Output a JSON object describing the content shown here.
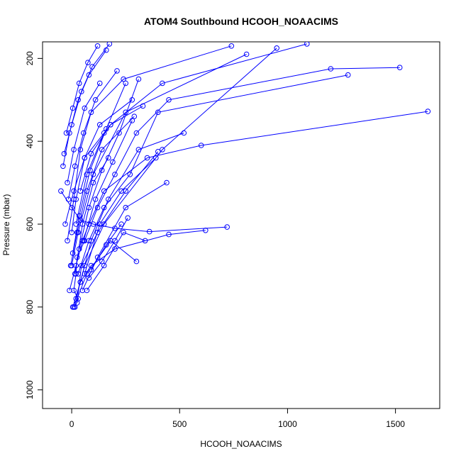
{
  "chart_data": {
    "type": "line",
    "title": "ATOM4 Southbound HCOOH_NOAACIMS",
    "xlabel": "HCOOH_NOAACIMS",
    "ylabel": "Pressure (mbar)",
    "xlim": [
      -135,
      1705
    ],
    "ylim": [
      1045,
      160
    ],
    "y_reversed": true,
    "grid": false,
    "x_ticks": [
      0,
      500,
      1000,
      1500
    ],
    "y_ticks": [
      200,
      400,
      600,
      800,
      1000
    ],
    "colors": {
      "series": "#0000ff",
      "axis": "#000000",
      "background": "#ffffff"
    },
    "marker": "open-circle",
    "series": [
      {
        "x": [
          15,
          30,
          10,
          20,
          25,
          60,
          120,
          200,
          300,
          450,
          1200,
          1520
        ],
        "y": [
          800,
          780,
          760,
          720,
          680,
          640,
          560,
          480,
          380,
          300,
          225,
          222
        ]
      },
      {
        "x": [
          -10,
          20,
          50,
          80,
          150,
          350,
          600,
          1650
        ],
        "y": [
          760,
          700,
          640,
          600,
          520,
          440,
          410,
          328
        ]
      },
      {
        "x": [
          -50,
          0,
          40,
          100,
          200,
          360,
          720
        ],
        "y": [
          520,
          560,
          590,
          600,
          610,
          618,
          607
        ]
      },
      {
        "x": [
          5,
          40,
          90,
          200,
          450,
          620
        ],
        "y": [
          800,
          740,
          700,
          660,
          625,
          615
        ]
      },
      {
        "x": [
          30,
          80,
          150,
          270,
          400,
          1280
        ],
        "y": [
          720,
          640,
          560,
          480,
          330,
          240
        ]
      },
      {
        "x": [
          -30,
          10,
          60,
          180,
          420,
          1090
        ],
        "y": [
          600,
          520,
          440,
          360,
          260,
          165
        ]
      },
      {
        "x": [
          0,
          30,
          100,
          250,
          810
        ],
        "y": [
          700,
          620,
          480,
          330,
          190
        ]
      },
      {
        "x": [
          20,
          60,
          150,
          420,
          950
        ],
        "y": [
          780,
          700,
          600,
          420,
          175
        ]
      },
      {
        "x": [
          -20,
          10,
          40,
          90,
          240,
          740
        ],
        "y": [
          640,
          540,
          420,
          330,
          250,
          170
        ]
      },
      {
        "x": [
          50,
          120,
          250,
          440
        ],
        "y": [
          760,
          680,
          560,
          500
        ]
      },
      {
        "x": [
          10,
          70,
          180,
          300
        ],
        "y": [
          800,
          720,
          640,
          690
        ]
      },
      {
        "x": [
          -40,
          -10,
          30,
          80,
          160
        ],
        "y": [
          460,
          380,
          300,
          240,
          180
        ]
      },
      {
        "x": [
          0,
          20,
          60,
          130,
          280
        ],
        "y": [
          620,
          540,
          440,
          360,
          300
        ]
      },
      {
        "x": [
          40,
          90,
          170,
          310,
          520
        ],
        "y": [
          740,
          640,
          540,
          420,
          380
        ]
      },
      {
        "x": [
          25,
          45,
          120,
          250,
          400
        ],
        "y": [
          790,
          700,
          620,
          520,
          425
        ]
      },
      {
        "x": [
          -15,
          15,
          55,
          110,
          210
        ],
        "y": [
          540,
          460,
          380,
          300,
          230
        ]
      },
      {
        "x": [
          60,
          130,
          230,
          390
        ],
        "y": [
          720,
          600,
          520,
          440
        ]
      },
      {
        "x": [
          -25,
          5,
          35,
          75,
          120
        ],
        "y": [
          380,
          320,
          260,
          210,
          170
        ]
      },
      {
        "x": [
          35,
          80,
          140,
          220,
          310
        ],
        "y": [
          660,
          560,
          470,
          380,
          250
        ]
      },
      {
        "x": [
          70,
          150,
          240,
          340
        ],
        "y": [
          760,
          700,
          620,
          640
        ]
      },
      {
        "x": [
          -5,
          25,
          70,
          140,
          290
        ],
        "y": [
          700,
          620,
          520,
          420,
          340
        ]
      },
      {
        "x": [
          15,
          50,
          100,
          170
        ],
        "y": [
          720,
          600,
          500,
          440
        ]
      },
      {
        "x": [
          80,
          140,
          200,
          260
        ],
        "y": [
          730,
          690,
          640,
          585
        ]
      },
      {
        "x": [
          -35,
          0,
          45,
          95,
          175
        ],
        "y": [
          430,
          360,
          280,
          220,
          165
        ]
      },
      {
        "x": [
          40,
          90,
          180,
          330
        ],
        "y": [
          520,
          430,
          360,
          315
        ]
      },
      {
        "x": [
          5,
          35,
          85,
          160,
          250
        ],
        "y": [
          670,
          580,
          470,
          370,
          260
        ]
      },
      {
        "x": [
          90,
          160,
          230
        ],
        "y": [
          710,
          650,
          600
        ]
      },
      {
        "x": [
          -20,
          10,
          60,
          130
        ],
        "y": [
          500,
          420,
          320,
          260
        ]
      },
      {
        "x": [
          55,
          110,
          190,
          280
        ],
        "y": [
          640,
          540,
          450,
          350
        ]
      },
      {
        "x": [
          20,
          70,
          150
        ],
        "y": [
          600,
          480,
          380
        ]
      }
    ]
  }
}
